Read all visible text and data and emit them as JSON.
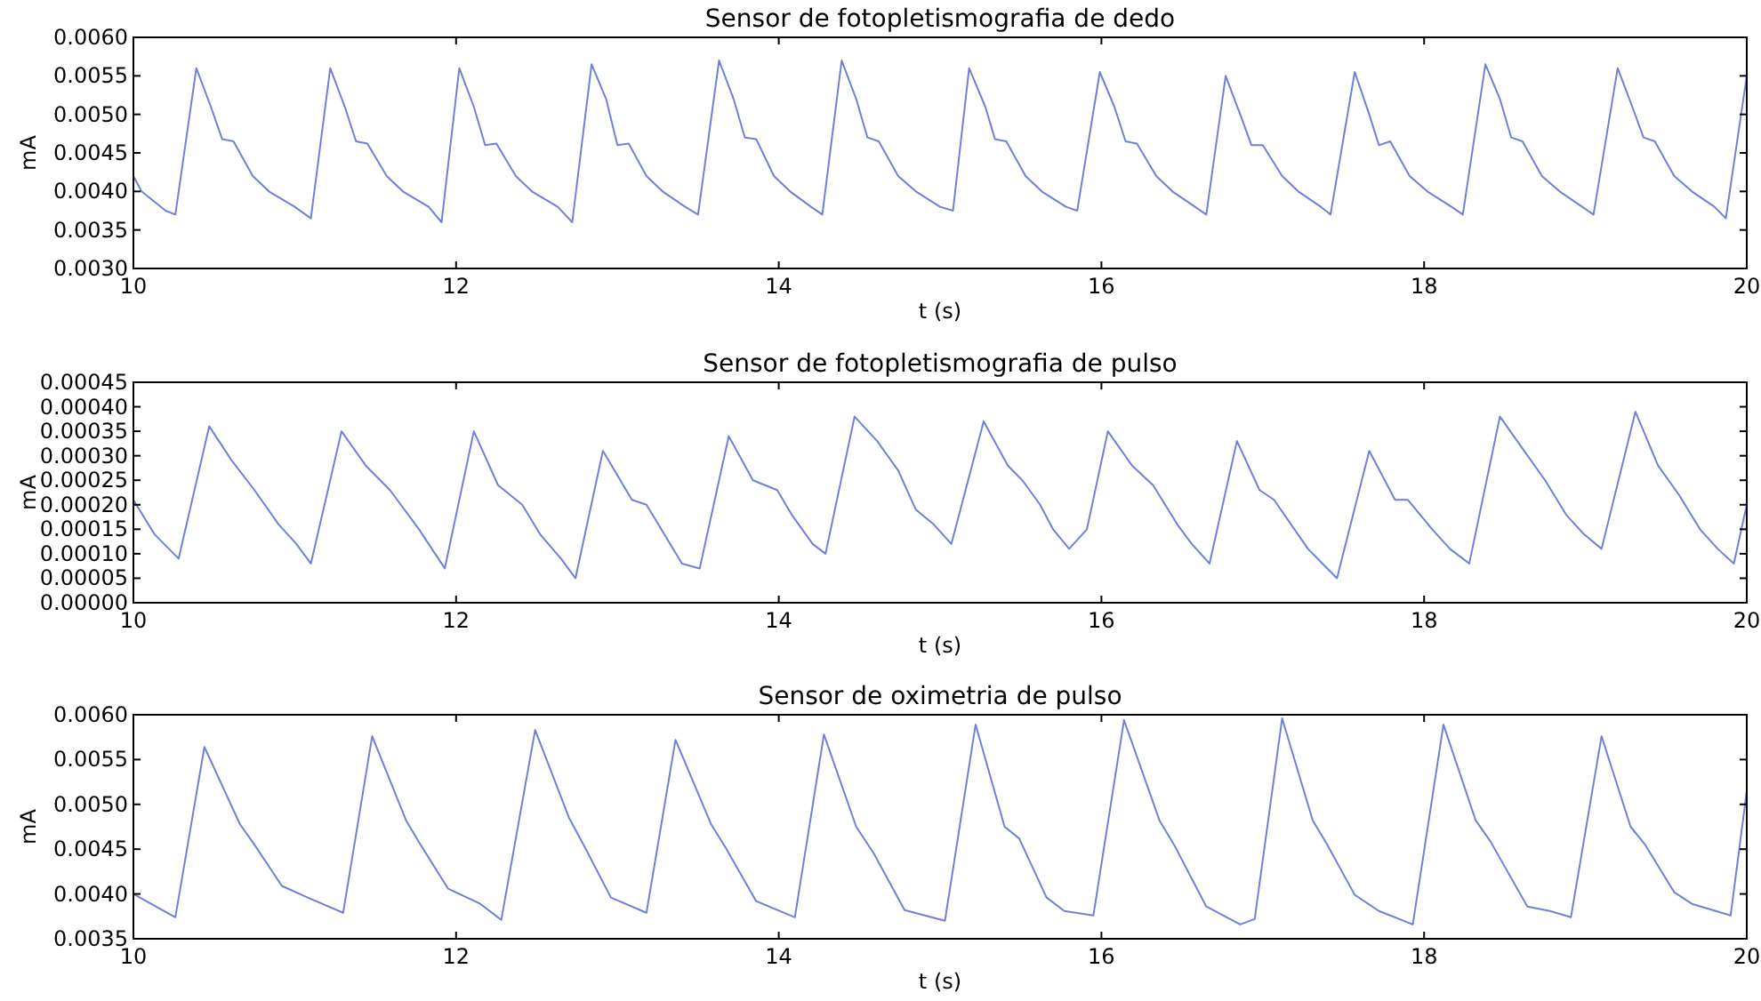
{
  "chart_data": [
    {
      "type": "line",
      "title": "Sensor de fotopletismografia de dedo",
      "xlabel": "t (s)",
      "ylabel": "mA",
      "color": "#7080d8",
      "xlim": [
        10,
        20
      ],
      "xticks": [
        10,
        12,
        14,
        16,
        18,
        20
      ],
      "ylim": [
        0.003,
        0.006
      ],
      "yticks": [
        {
          "value": 0.003,
          "label": "0.0030"
        },
        {
          "value": 0.0035,
          "label": "0.0035"
        },
        {
          "value": 0.004,
          "label": "0.0040"
        },
        {
          "value": 0.0045,
          "label": "0.0045"
        },
        {
          "value": 0.005,
          "label": "0.0050"
        },
        {
          "value": 0.0055,
          "label": "0.0055"
        },
        {
          "value": 0.006,
          "label": "0.0060"
        }
      ],
      "x": [
        10.0,
        10.05,
        10.2,
        10.26,
        10.39,
        10.48,
        10.55,
        10.62,
        10.74,
        10.84,
        11.0,
        11.1,
        11.22,
        11.31,
        11.38,
        11.45,
        11.57,
        11.67,
        11.83,
        11.91,
        12.02,
        12.11,
        12.18,
        12.25,
        12.37,
        12.47,
        12.63,
        12.72,
        12.84,
        12.93,
        13.0,
        13.07,
        13.18,
        13.28,
        13.42,
        13.5,
        13.63,
        13.72,
        13.79,
        13.86,
        13.97,
        14.07,
        14.2,
        14.27,
        14.39,
        14.48,
        14.55,
        14.62,
        14.74,
        14.85,
        15.0,
        15.08,
        15.18,
        15.28,
        15.34,
        15.41,
        15.53,
        15.63,
        15.78,
        15.85,
        15.99,
        16.08,
        16.15,
        16.22,
        16.34,
        16.44,
        16.58,
        16.65,
        16.77,
        16.86,
        16.93,
        17.0,
        17.12,
        17.22,
        17.36,
        17.42,
        17.57,
        17.66,
        17.72,
        17.79,
        17.91,
        18.02,
        18.17,
        18.24,
        18.38,
        18.47,
        18.54,
        18.61,
        18.73,
        18.84,
        18.98,
        19.05,
        19.2,
        19.29,
        19.36,
        19.43,
        19.55,
        19.66,
        19.8,
        19.87,
        20.0
      ],
      "values": [
        0.0042,
        0.004,
        0.00375,
        0.0037,
        0.0056,
        0.0051,
        0.00468,
        0.00465,
        0.0042,
        0.004,
        0.0038,
        0.00365,
        0.0056,
        0.0051,
        0.00465,
        0.00462,
        0.0042,
        0.004,
        0.0038,
        0.0036,
        0.0056,
        0.0051,
        0.0046,
        0.00462,
        0.0042,
        0.004,
        0.0038,
        0.0036,
        0.00565,
        0.0052,
        0.0046,
        0.00462,
        0.0042,
        0.004,
        0.0038,
        0.0037,
        0.0057,
        0.0052,
        0.0047,
        0.00468,
        0.0042,
        0.004,
        0.0038,
        0.0037,
        0.0057,
        0.0052,
        0.0047,
        0.00465,
        0.0042,
        0.004,
        0.0038,
        0.00375,
        0.0056,
        0.0051,
        0.00468,
        0.00465,
        0.0042,
        0.004,
        0.0038,
        0.00375,
        0.00555,
        0.0051,
        0.00465,
        0.00462,
        0.0042,
        0.004,
        0.0038,
        0.0037,
        0.0055,
        0.005,
        0.0046,
        0.0046,
        0.0042,
        0.004,
        0.0038,
        0.0037,
        0.00555,
        0.005,
        0.0046,
        0.00465,
        0.0042,
        0.004,
        0.0038,
        0.0037,
        0.00565,
        0.0052,
        0.0047,
        0.00465,
        0.0042,
        0.004,
        0.0038,
        0.0037,
        0.0056,
        0.0051,
        0.0047,
        0.00465,
        0.0042,
        0.004,
        0.0038,
        0.00365,
        0.0055
      ]
    },
    {
      "type": "line",
      "title": "Sensor de fotopletismografia de pulso",
      "xlabel": "t (s)",
      "ylabel": "mA",
      "color": "#7080d8",
      "xlim": [
        10,
        20
      ],
      "xticks": [
        10,
        12,
        14,
        16,
        18,
        20
      ],
      "ylim": [
        0,
        0.00045
      ],
      "yticks": [
        {
          "value": 0,
          "label": "0.00000"
        },
        {
          "value": 5e-05,
          "label": "0.00005"
        },
        {
          "value": 0.0001,
          "label": "0.00010"
        },
        {
          "value": 0.00015,
          "label": "0.00015"
        },
        {
          "value": 0.0002,
          "label": "0.00020"
        },
        {
          "value": 0.00025,
          "label": "0.00025"
        },
        {
          "value": 0.0003,
          "label": "0.00030"
        },
        {
          "value": 0.00035,
          "label": "0.00035"
        },
        {
          "value": 0.0004,
          "label": "0.00040"
        },
        {
          "value": 0.00045,
          "label": "0.00045"
        }
      ],
      "x": [
        10.0,
        10.13,
        10.28,
        10.47,
        10.61,
        10.75,
        10.9,
        11.01,
        11.1,
        11.29,
        11.44,
        11.59,
        11.77,
        11.93,
        12.11,
        12.26,
        12.41,
        12.52,
        12.65,
        12.74,
        12.91,
        13.09,
        13.18,
        13.29,
        13.4,
        13.51,
        13.69,
        13.84,
        13.99,
        14.08,
        14.21,
        14.29,
        14.47,
        14.61,
        14.74,
        14.85,
        14.96,
        15.07,
        15.27,
        15.42,
        15.51,
        15.62,
        15.7,
        15.8,
        15.91,
        16.04,
        16.19,
        16.32,
        16.47,
        16.56,
        16.67,
        16.84,
        16.98,
        17.07,
        17.28,
        17.46,
        17.66,
        17.82,
        17.9,
        18.05,
        18.16,
        18.28,
        18.47,
        18.62,
        18.75,
        18.88,
        18.99,
        19.1,
        19.31,
        19.45,
        19.58,
        19.71,
        19.82,
        19.92,
        20.0
      ],
      "values": [
        0.00021,
        0.00014,
        9e-05,
        0.00036,
        0.00029,
        0.00023,
        0.00016,
        0.00012,
        8e-05,
        0.00035,
        0.00028,
        0.00023,
        0.00015,
        7e-05,
        0.00035,
        0.00024,
        0.0002,
        0.00014,
        9e-05,
        5e-05,
        0.00031,
        0.00021,
        0.0002,
        0.00014,
        8e-05,
        7e-05,
        0.00034,
        0.00025,
        0.00023,
        0.00018,
        0.00012,
        0.0001,
        0.00038,
        0.00033,
        0.00027,
        0.00019,
        0.00016,
        0.00012,
        0.00037,
        0.00028,
        0.00025,
        0.0002,
        0.00015,
        0.00011,
        0.00015,
        0.00035,
        0.00028,
        0.00024,
        0.00016,
        0.00012,
        8e-05,
        0.00033,
        0.00023,
        0.00021,
        0.00011,
        5e-05,
        0.00031,
        0.00021,
        0.00021,
        0.00015,
        0.00011,
        8e-05,
        0.00038,
        0.00031,
        0.00025,
        0.00018,
        0.00014,
        0.00011,
        0.00039,
        0.00028,
        0.00022,
        0.00015,
        0.00011,
        8e-05,
        0.0002
      ]
    },
    {
      "type": "line",
      "title": "Sensor de oximetria de pulso",
      "xlabel": "t (s)",
      "ylabel": "mA",
      "color": "#7080d8",
      "xlim": [
        10,
        20
      ],
      "xticks": [
        10,
        12,
        14,
        16,
        18,
        20
      ],
      "ylim": [
        0.0035,
        0.006
      ],
      "yticks": [
        {
          "value": 0.0035,
          "label": "0.0035"
        },
        {
          "value": 0.004,
          "label": "0.0040"
        },
        {
          "value": 0.0045,
          "label": "0.0045"
        },
        {
          "value": 0.005,
          "label": "0.0050"
        },
        {
          "value": 0.0055,
          "label": "0.0055"
        },
        {
          "value": 0.006,
          "label": "0.0060"
        }
      ],
      "x": [
        10.0,
        10.26,
        10.44,
        10.66,
        10.75,
        10.92,
        11.08,
        11.3,
        11.48,
        11.69,
        11.78,
        11.95,
        12.15,
        12.28,
        12.49,
        12.7,
        12.79,
        12.96,
        13.18,
        13.36,
        13.58,
        13.67,
        13.86,
        14.1,
        14.28,
        14.48,
        14.59,
        14.78,
        15.03,
        15.22,
        15.4,
        15.49,
        15.66,
        15.77,
        15.95,
        16.14,
        16.36,
        16.45,
        16.65,
        16.86,
        16.95,
        17.12,
        17.31,
        17.4,
        17.57,
        17.72,
        17.93,
        18.12,
        18.32,
        18.41,
        18.64,
        18.78,
        18.91,
        19.1,
        19.28,
        19.37,
        19.55,
        19.66,
        19.9,
        20.0
      ],
      "values": [
        0.004,
        0.00374,
        0.00564,
        0.00478,
        0.00455,
        0.00409,
        0.00396,
        0.00379,
        0.00576,
        0.00482,
        0.00455,
        0.00406,
        0.00389,
        0.00371,
        0.00583,
        0.00485,
        0.00455,
        0.00396,
        0.00379,
        0.00572,
        0.00478,
        0.00452,
        0.00392,
        0.00374,
        0.00578,
        0.00475,
        0.00445,
        0.00382,
        0.0037,
        0.00589,
        0.00475,
        0.00462,
        0.00396,
        0.00381,
        0.00376,
        0.00594,
        0.00482,
        0.00455,
        0.00386,
        0.00366,
        0.00372,
        0.00596,
        0.00482,
        0.00455,
        0.00399,
        0.00381,
        0.00366,
        0.00589,
        0.00482,
        0.00459,
        0.00386,
        0.00381,
        0.00374,
        0.00576,
        0.00475,
        0.00455,
        0.00402,
        0.00389,
        0.00376,
        0.00515
      ]
    }
  ]
}
